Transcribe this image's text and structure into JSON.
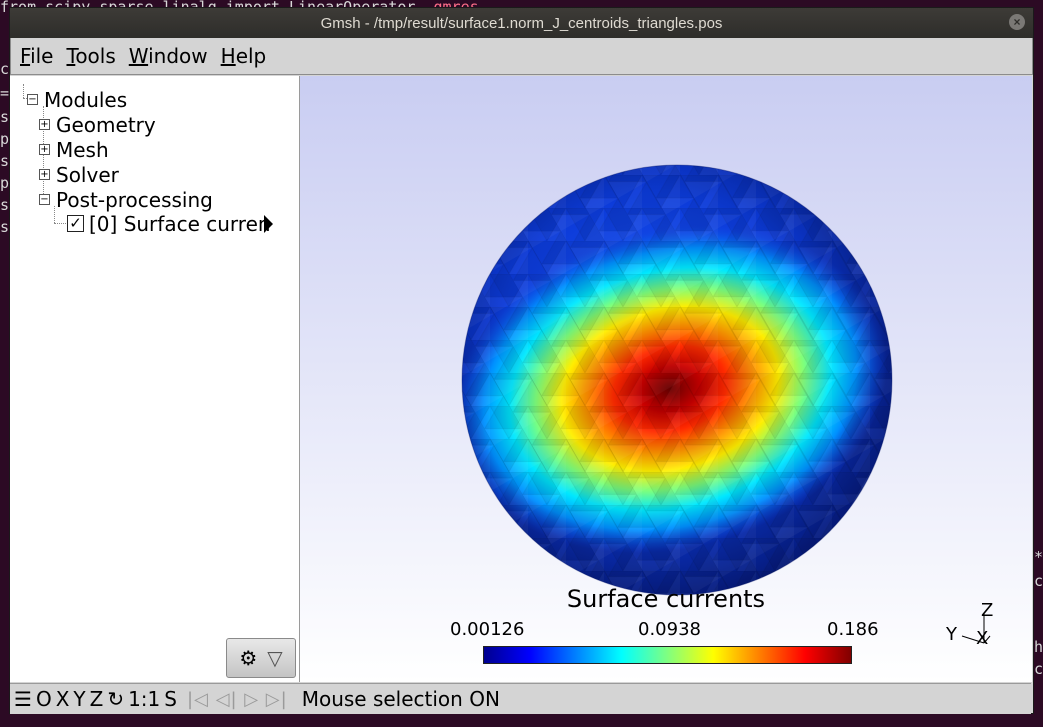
{
  "terminal": {
    "lines": [
      {
        "text": "from scipy.sparse.linalg import LinearOperator, ",
        "hl": "gmres"
      },
      {
        "text": "cl",
        "hl": ""
      },
      {
        "text": "=",
        "hl": ""
      },
      {
        "text": "st",
        "hl": ""
      },
      {
        "text": "p",
        "hl": ""
      },
      {
        "text": "st",
        "hl": ""
      },
      {
        "text": "p",
        "hl": ""
      },
      {
        "text": "st",
        "hl": ""
      },
      {
        "text": "st",
        "hl": ""
      }
    ],
    "right_lines": [
      "*",
      "c",
      "h",
      "c"
    ]
  },
  "window": {
    "title": "Gmsh - /tmp/result/surface1.norm_J_centroids_triangles.pos",
    "close_icon": "×"
  },
  "menu": [
    {
      "u": "F",
      "rest": "ile"
    },
    {
      "u": "T",
      "rest": "ools"
    },
    {
      "u": "W",
      "rest": "indow"
    },
    {
      "u": "H",
      "rest": "elp"
    }
  ],
  "tree": {
    "modules": "Modules",
    "geometry": "Geometry",
    "mesh": "Mesh",
    "solver": "Solver",
    "post": "Post-processing",
    "view0": "[0] Surface curren",
    "minus": "−",
    "plus": "+",
    "check": "✓"
  },
  "gear_button": {
    "gear": "⚙",
    "menu": "▽"
  },
  "colorbar": {
    "title": "Surface currents",
    "min": "0.00126",
    "mid": "0.0938",
    "max": "0.186"
  },
  "axes": {
    "z": "Z",
    "y": "Y",
    "x": "X"
  },
  "status": {
    "menu_icon": "☰",
    "o": "O",
    "x": "X",
    "y": "Y",
    "z": "Z",
    "rotate_icon": "↻",
    "scale": "1:1",
    "s": "S",
    "playback": "|◁ ◁| ▷ ▷|",
    "message": "Mouse selection ON"
  }
}
